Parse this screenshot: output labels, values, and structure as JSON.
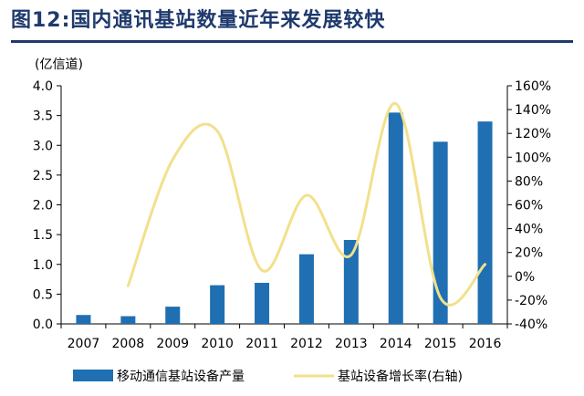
{
  "title": "图12:国内通讯基站数量近年来发展较快",
  "unit_label": "(亿信道)",
  "chart_data": {
    "type": "bar",
    "title": "图12:国内通讯基站数量近年来发展较快",
    "categories": [
      "2007",
      "2008",
      "2009",
      "2010",
      "2011",
      "2012",
      "2013",
      "2014",
      "2015",
      "2016"
    ],
    "series": [
      {
        "name": "移动通信基站设备产量",
        "type": "bar",
        "axis": "left",
        "color": "#1f6fb2",
        "values": [
          0.15,
          0.13,
          0.29,
          0.65,
          0.69,
          1.17,
          1.41,
          3.55,
          3.06,
          3.4
        ]
      },
      {
        "name": "基站设备增长率(右轴)",
        "type": "line",
        "axis": "right",
        "color": "#f2e08c",
        "values": [
          null,
          -8,
          98,
          122,
          5,
          68,
          18,
          145,
          -18,
          10
        ]
      }
    ],
    "ylabel": "(亿信道)",
    "ylim": [
      0,
      4.0
    ],
    "yticks": [
      "0.0",
      "0.5",
      "1.0",
      "1.5",
      "2.0",
      "2.5",
      "3.0",
      "3.5",
      "4.0"
    ],
    "y2lim": [
      -40,
      160
    ],
    "y2ticks": [
      "-40%",
      "-20%",
      "0%",
      "20%",
      "40%",
      "60%",
      "80%",
      "100%",
      "120%",
      "140%",
      "160%"
    ],
    "grid": false,
    "legend": "bottom"
  }
}
